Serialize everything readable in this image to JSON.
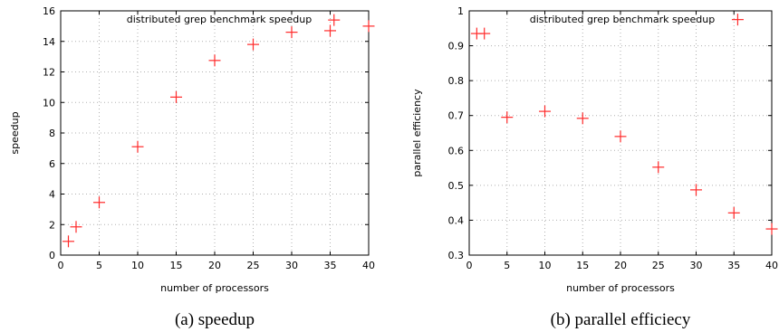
{
  "chart_data": [
    {
      "type": "scatter",
      "legend": "distributed grep benchmark speedup",
      "legend_placement": "top-center",
      "xlabel": "number of processors",
      "ylabel": "speedup",
      "xlim": [
        0,
        40
      ],
      "ylim": [
        0,
        16
      ],
      "xticks": [
        0,
        5,
        10,
        15,
        20,
        25,
        30,
        35,
        40
      ],
      "yticks": [
        0,
        2,
        4,
        6,
        8,
        10,
        12,
        14,
        16
      ],
      "grid": true,
      "marker_color": "#ff2a2a",
      "caption": "(a) speedup",
      "x": [
        1,
        2,
        5,
        10,
        15,
        20,
        25,
        30,
        35,
        35.5,
        40
      ],
      "y": [
        0.9,
        1.85,
        3.45,
        7.1,
        10.35,
        12.75,
        13.8,
        14.6,
        14.7,
        15.4,
        15.0
      ]
    },
    {
      "type": "scatter",
      "legend": "distributed grep benchmark speedup",
      "legend_placement": "top-center",
      "xlabel": "number of processors",
      "ylabel": "parallel efficiency",
      "xlim": [
        0,
        40
      ],
      "ylim": [
        0.3,
        1
      ],
      "xticks": [
        0,
        5,
        10,
        15,
        20,
        25,
        30,
        35,
        40
      ],
      "yticks": [
        0.3,
        0.4,
        0.5,
        0.6,
        0.7,
        0.8,
        0.9,
        1
      ],
      "grid": true,
      "marker_color": "#ff2a2a",
      "caption": "(b) parallel efficiecy",
      "x": [
        1,
        2,
        5,
        10,
        15,
        20,
        25,
        30,
        35,
        35.5,
        40
      ],
      "y": [
        0.935,
        0.935,
        0.695,
        0.712,
        0.692,
        0.64,
        0.552,
        0.487,
        0.421,
        0.975,
        0.375
      ]
    }
  ]
}
